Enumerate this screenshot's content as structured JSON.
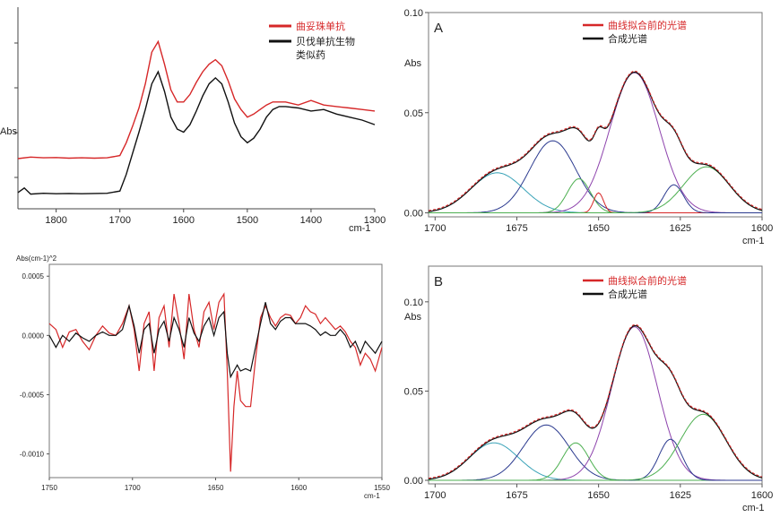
{
  "chart_data": [
    {
      "type": "line",
      "panel": "top-left",
      "xlabel": "cm-1",
      "ylabel": "Abs",
      "xlim": [
        1860,
        1300
      ],
      "x_ticks": [
        1800,
        1700,
        1600,
        1500,
        1400,
        1300
      ],
      "legend": "top-right",
      "series": [
        {
          "name": "曲妥珠单抗",
          "color": "#d62728",
          "x": [
            1860,
            1840,
            1820,
            1800,
            1780,
            1760,
            1740,
            1720,
            1700,
            1690,
            1680,
            1670,
            1660,
            1650,
            1640,
            1630,
            1620,
            1610,
            1600,
            1590,
            1580,
            1570,
            1560,
            1550,
            1540,
            1530,
            1520,
            1510,
            1500,
            1490,
            1480,
            1470,
            1460,
            1450,
            1440,
            1420,
            1400,
            1380,
            1360,
            1340,
            1320,
            1300
          ],
          "y": [
            0.225,
            0.235,
            0.23,
            0.232,
            0.228,
            0.23,
            0.228,
            0.23,
            0.245,
            0.33,
            0.44,
            0.56,
            0.72,
            0.93,
            1.0,
            0.85,
            0.68,
            0.6,
            0.6,
            0.65,
            0.73,
            0.8,
            0.85,
            0.88,
            0.84,
            0.74,
            0.62,
            0.55,
            0.5,
            0.52,
            0.55,
            0.58,
            0.6,
            0.6,
            0.6,
            0.58,
            0.61,
            0.58,
            0.57,
            0.56,
            0.55,
            0.54
          ]
        },
        {
          "name": "贝伐单抗生物类似药",
          "color": "#111111",
          "x": [
            1860,
            1850,
            1840,
            1820,
            1800,
            1780,
            1760,
            1740,
            1720,
            1700,
            1690,
            1680,
            1670,
            1660,
            1650,
            1640,
            1630,
            1620,
            1610,
            1600,
            1590,
            1580,
            1570,
            1560,
            1550,
            1540,
            1530,
            1520,
            1510,
            1500,
            1490,
            1480,
            1470,
            1460,
            1450,
            1440,
            1420,
            1400,
            1380,
            1360,
            1340,
            1320,
            1300
          ],
          "y": [
            0.0,
            0.03,
            -0.01,
            -0.005,
            -0.008,
            -0.006,
            -0.008,
            -0.006,
            -0.005,
            0.01,
            0.12,
            0.26,
            0.4,
            0.55,
            0.72,
            0.8,
            0.67,
            0.5,
            0.42,
            0.4,
            0.45,
            0.54,
            0.64,
            0.72,
            0.76,
            0.72,
            0.6,
            0.46,
            0.37,
            0.33,
            0.36,
            0.42,
            0.5,
            0.55,
            0.57,
            0.57,
            0.56,
            0.54,
            0.55,
            0.52,
            0.5,
            0.48,
            0.45
          ]
        }
      ]
    },
    {
      "type": "line",
      "panel": "top-right",
      "title": "A",
      "ylabel": "Abs",
      "xlabel": "cm-1",
      "xlim": [
        1702,
        1600
      ],
      "ylim": [
        -0.002,
        0.1
      ],
      "x_ticks": [
        1700,
        1675,
        1650,
        1625,
        1600
      ],
      "y_ticks": [
        0.0,
        0.05,
        0.1
      ],
      "y_tick_labels": [
        "0.00",
        "0.05",
        "0.10"
      ],
      "legend": "top-right",
      "series": [
        {
          "name": "曲线拟合前的光谱",
          "color": "#d62728"
        },
        {
          "name": "合成光谱",
          "color": "#111111"
        }
      ],
      "components": [
        {
          "center": 1681,
          "amplitude": 0.02,
          "width": 8.0,
          "color": "#3aa3b8"
        },
        {
          "center": 1664,
          "amplitude": 0.036,
          "width": 7.0,
          "color": "#2b3a8f"
        },
        {
          "center": 1656,
          "amplitude": 0.017,
          "width": 3.5,
          "color": "#4caf50"
        },
        {
          "center": 1650,
          "amplitude": 0.01,
          "width": 1.5,
          "color": "#d62728"
        },
        {
          "center": 1639,
          "amplitude": 0.07,
          "width": 7.5,
          "color": "#8e44ad"
        },
        {
          "center": 1627,
          "amplitude": 0.014,
          "width": 3.0,
          "color": "#2b3a8f"
        },
        {
          "center": 1617,
          "amplitude": 0.023,
          "width": 7.0,
          "color": "#4caf50"
        }
      ]
    },
    {
      "type": "line",
      "panel": "bottom-left",
      "ylabel": "Abs(cm-1)^2",
      "xlabel": "cm-1",
      "xlim": [
        1750,
        1550
      ],
      "ylim": [
        -0.0012,
        0.0006
      ],
      "x_ticks": [
        1750,
        1700,
        1650,
        1600,
        1550
      ],
      "y_ticks": [
        0.0005,
        0.0,
        -0.0005,
        -0.001
      ],
      "y_tick_labels": [
        "0.0005",
        "0.0000",
        "-0.0005",
        "-0.0010"
      ],
      "series": [
        {
          "name": "red",
          "color": "#d62728",
          "x": [
            1750,
            1746,
            1742,
            1738,
            1734,
            1730,
            1726,
            1722,
            1718,
            1714,
            1710,
            1706,
            1702,
            1699,
            1696,
            1693,
            1690,
            1687,
            1684,
            1681,
            1678,
            1675,
            1672,
            1669,
            1666,
            1663,
            1660,
            1657,
            1654,
            1651,
            1648,
            1645,
            1643,
            1641,
            1639,
            1637,
            1635,
            1632,
            1629,
            1626,
            1623,
            1620,
            1617,
            1614,
            1611,
            1608,
            1605,
            1602,
            1599,
            1596,
            1593,
            1590,
            1587,
            1584,
            1581,
            1578,
            1575,
            1572,
            1569,
            1566,
            1563,
            1560,
            1557,
            1554,
            1550
          ],
          "y": [
            0.0001,
            5e-05,
            -0.0001,
            3e-05,
            5e-05,
            -5e-05,
            -0.00012,
            0.0,
            8e-05,
            2e-05,
            0.0,
            0.0001,
            0.00025,
            5e-05,
            -0.0003,
            0.0001,
            0.0002,
            -0.0003,
            0.00015,
            0.00025,
            -0.0001,
            0.00035,
            0.0001,
            -0.0002,
            0.00035,
            5e-05,
            -0.0001,
            0.0002,
            0.00028,
            5e-05,
            0.00028,
            0.00035,
            -0.0003,
            -0.00115,
            -0.0006,
            -0.0003,
            -0.00055,
            -0.0006,
            -0.0006,
            -0.0002,
            0.00015,
            0.00025,
            0.00015,
            8e-05,
            0.00015,
            0.00018,
            0.00017,
            0.0001,
            0.00015,
            0.00025,
            0.0002,
            0.00018,
            0.0001,
            0.00015,
            0.0001,
            5e-05,
            8e-05,
            3e-05,
            -5e-05,
            -0.0001,
            -0.00025,
            -0.00015,
            -0.0002,
            -0.0003,
            -0.0001
          ]
        },
        {
          "name": "black",
          "color": "#111111",
          "x": [
            1750,
            1746,
            1742,
            1738,
            1734,
            1730,
            1726,
            1722,
            1718,
            1714,
            1710,
            1706,
            1702,
            1699,
            1696,
            1693,
            1690,
            1687,
            1684,
            1681,
            1678,
            1675,
            1672,
            1669,
            1666,
            1663,
            1660,
            1657,
            1654,
            1651,
            1648,
            1645,
            1643,
            1641,
            1639,
            1637,
            1635,
            1632,
            1629,
            1626,
            1623,
            1620,
            1617,
            1614,
            1611,
            1608,
            1605,
            1602,
            1599,
            1596,
            1593,
            1590,
            1587,
            1584,
            1581,
            1578,
            1575,
            1572,
            1569,
            1566,
            1563,
            1560,
            1557,
            1554,
            1550
          ],
          "y": [
            0.0,
            -0.0001,
            0.0,
            -5e-05,
            2e-05,
            -2e-05,
            -5e-05,
            0.0,
            3e-05,
            0.0,
            0.0,
            5e-05,
            0.00025,
            8e-05,
            -0.00015,
            5e-05,
            0.0001,
            -0.00015,
            5e-05,
            0.00012,
            -5e-05,
            0.00015,
            5e-05,
            -0.0001,
            0.00015,
            2e-05,
            -5e-05,
            8e-05,
            0.00015,
            0.0,
            0.00015,
            0.0002,
            -0.00015,
            -0.00035,
            -0.0003,
            -0.00025,
            -0.0003,
            -0.00028,
            -0.0003,
            -0.0001,
            0.0001,
            0.00028,
            0.0001,
            5e-05,
            0.00012,
            0.00015,
            0.00015,
            0.0001,
            0.0001,
            0.0001,
            8e-05,
            5e-05,
            0.0,
            3e-05,
            0.0,
            0.0,
            5e-05,
            0.0,
            -0.0001,
            -5e-05,
            -0.00015,
            -5e-05,
            -0.0001,
            -0.00015,
            -5e-05
          ]
        }
      ]
    },
    {
      "type": "line",
      "panel": "bottom-right",
      "title": "B",
      "ylabel": "Abs",
      "xlabel": "cm-1",
      "xlim": [
        1702,
        1600
      ],
      "ylim": [
        -0.002,
        0.12
      ],
      "x_ticks": [
        1700,
        1675,
        1650,
        1625,
        1600
      ],
      "y_ticks": [
        0.0,
        0.05,
        0.1
      ],
      "y_tick_labels": [
        "0.00",
        "0.05",
        "0.10"
      ],
      "legend": "top-right",
      "series": [
        {
          "name": "曲线拟合前的光谱",
          "color": "#d62728"
        },
        {
          "name": "合成光谱",
          "color": "#111111"
        }
      ],
      "components": [
        {
          "center": 1682,
          "amplitude": 0.021,
          "width": 7.5,
          "color": "#3aa3b8"
        },
        {
          "center": 1666,
          "amplitude": 0.031,
          "width": 7.0,
          "color": "#2b3a8f"
        },
        {
          "center": 1657,
          "amplitude": 0.021,
          "width": 4.0,
          "color": "#4caf50"
        },
        {
          "center": 1639,
          "amplitude": 0.086,
          "width": 7.0,
          "color": "#8e44ad"
        },
        {
          "center": 1628,
          "amplitude": 0.023,
          "width": 3.5,
          "color": "#2b3a8f"
        },
        {
          "center": 1618,
          "amplitude": 0.037,
          "width": 7.0,
          "color": "#4caf50"
        }
      ]
    }
  ]
}
